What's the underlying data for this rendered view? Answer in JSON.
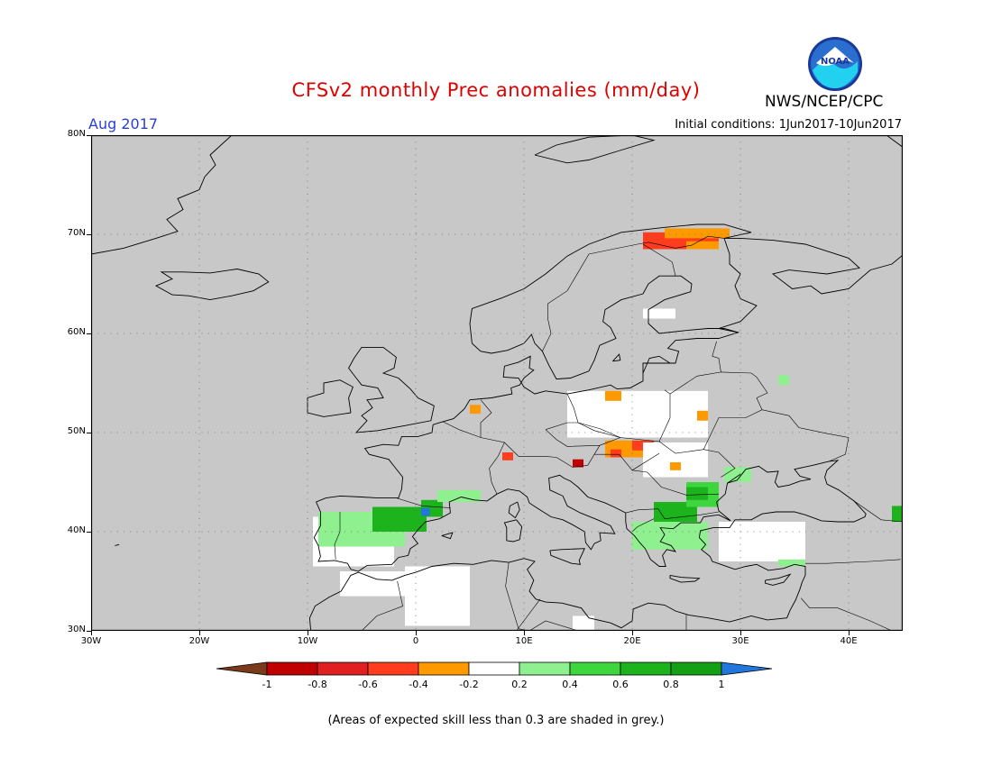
{
  "title": "CFSv2 monthly Prec anomalies (mm/day)",
  "organization": "NWS/NCEP/CPC",
  "logo_text": "NOAA",
  "month_label": "Aug 2017",
  "initial_conditions": "Initial conditions: 1Jun2017-10Jun2017",
  "footnote": "(Areas of expected skill less than 0.3 are shaded in grey.)",
  "colors": {
    "land_grey": "#c8c8c8",
    "coast": "#000000",
    "grid": "#777777"
  },
  "map": {
    "lon_range": [
      -30,
      45
    ],
    "lat_range": [
      30,
      80
    ],
    "lat_ticks": [
      {
        "value": 30,
        "label": "30N"
      },
      {
        "value": 40,
        "label": "40N"
      },
      {
        "value": 50,
        "label": "50N"
      },
      {
        "value": 60,
        "label": "60N"
      },
      {
        "value": 70,
        "label": "70N"
      },
      {
        "value": 80,
        "label": "80N"
      }
    ],
    "lon_ticks": [
      {
        "value": -30,
        "label": "30W"
      },
      {
        "value": -20,
        "label": "20W"
      },
      {
        "value": -10,
        "label": "10W"
      },
      {
        "value": 0,
        "label": "0"
      },
      {
        "value": 10,
        "label": "10E"
      },
      {
        "value": 20,
        "label": "20E"
      },
      {
        "value": 30,
        "label": "30E"
      },
      {
        "value": 40,
        "label": "40E"
      }
    ],
    "anomaly_regions": [
      {
        "name": "northern-finland-dry",
        "color": "#ff3c1e",
        "lon": [
          21,
          28
        ],
        "lat": [
          68.5,
          70.2
        ]
      },
      {
        "name": "finnmark-moderate-dry",
        "color": "#ff9900",
        "lon": [
          23,
          29
        ],
        "lat": [
          69.6,
          70.6
        ]
      },
      {
        "name": "lapland-moderate-dry",
        "color": "#ff9900",
        "lon": [
          25,
          28
        ],
        "lat": [
          68.5,
          69.3
        ]
      },
      {
        "name": "finland-neutral",
        "color": "#ffffff",
        "lon": [
          21,
          24
        ],
        "lat": [
          61.5,
          62.5
        ]
      },
      {
        "name": "poland-neutral",
        "color": "#ffffff",
        "lon": [
          14,
          27
        ],
        "lat": [
          49.5,
          54.2
        ]
      },
      {
        "name": "poland-dry",
        "color": "#ff9900",
        "lon": [
          17.5,
          19
        ],
        "lat": [
          53.2,
          54.2
        ]
      },
      {
        "name": "ukraine-dry",
        "color": "#ff9900",
        "lon": [
          26,
          27
        ],
        "lat": [
          51.2,
          52.2
        ]
      },
      {
        "name": "slovakia-dry",
        "color": "#ff9900",
        "lon": [
          17.5,
          21
        ],
        "lat": [
          47.5,
          49.2
        ]
      },
      {
        "name": "slovakia-stronger-dry",
        "color": "#ff3c1e",
        "lon": [
          20,
          22
        ],
        "lat": [
          48.2,
          49.2
        ]
      },
      {
        "name": "hungary-dry",
        "color": "#ff3c1e",
        "lon": [
          18,
          19
        ],
        "lat": [
          47.5,
          48.3
        ]
      },
      {
        "name": "carpathian-neutral",
        "color": "#ffffff",
        "lon": [
          21,
          27
        ],
        "lat": [
          45.5,
          49
        ]
      },
      {
        "name": "netherlands-dry",
        "color": "#ff9900",
        "lon": [
          5,
          6
        ],
        "lat": [
          51.9,
          52.8
        ]
      },
      {
        "name": "switzerland-dry",
        "color": "#ff3c1e",
        "lon": [
          8,
          9
        ],
        "lat": [
          47.2,
          48
        ]
      },
      {
        "name": "slovenia-very-dry",
        "color": "#c00000",
        "lon": [
          14.5,
          15.5
        ],
        "lat": [
          46.5,
          47.3
        ]
      },
      {
        "name": "romania-dry",
        "color": "#ff9900",
        "lon": [
          23.5,
          24.5
        ],
        "lat": [
          46.2,
          47
        ]
      },
      {
        "name": "spain-neutral",
        "color": "#ffffff",
        "lon": [
          -9.5,
          -2
        ],
        "lat": [
          36.5,
          41.5
        ]
      },
      {
        "name": "spain-light-wet",
        "color": "#8ef08e",
        "lon": [
          -9,
          -1
        ],
        "lat": [
          38.5,
          42
        ]
      },
      {
        "name": "spain-wet",
        "color": "#1db31d",
        "lon": [
          -4,
          1
        ],
        "lat": [
          40,
          42.5
        ]
      },
      {
        "name": "ebro-wet",
        "color": "#1db31d",
        "lon": [
          0.5,
          2.5
        ],
        "lat": [
          41.5,
          43.2
        ]
      },
      {
        "name": "catalonia-very-wet",
        "color": "#2277dd",
        "lon": [
          0.5,
          1.3
        ],
        "lat": [
          41.6,
          42.4
        ]
      },
      {
        "name": "pyrenees-light-wet",
        "color": "#8ef08e",
        "lon": [
          2,
          6
        ],
        "lat": [
          43,
          44.2
        ]
      },
      {
        "name": "north-africa-neutral",
        "color": "#ffffff",
        "lon": [
          -1,
          5
        ],
        "lat": [
          30.5,
          36.5
        ]
      },
      {
        "name": "morocco-neutral",
        "color": "#ffffff",
        "lon": [
          -7,
          -1
        ],
        "lat": [
          33.5,
          36
        ]
      },
      {
        "name": "balkans-wet",
        "color": "#1db31d",
        "lon": [
          22,
          26
        ],
        "lat": [
          40.5,
          43
        ]
      },
      {
        "name": "balkans-light-wet",
        "color": "#8ef08e",
        "lon": [
          20,
          27
        ],
        "lat": [
          38.2,
          41
        ]
      },
      {
        "name": "bulgaria-wet",
        "color": "#3ed63e",
        "lon": [
          25,
          28
        ],
        "lat": [
          42.5,
          45
        ]
      },
      {
        "name": "bulgaria-strong-wet",
        "color": "#1db31d",
        "lon": [
          25,
          27
        ],
        "lat": [
          43.2,
          44.5
        ]
      },
      {
        "name": "black-sea-coast-light-wet",
        "color": "#8ef08e",
        "lon": [
          28.5,
          31
        ],
        "lat": [
          45,
          46.5
        ]
      },
      {
        "name": "anatolia-neutral",
        "color": "#ffffff",
        "lon": [
          28,
          36
        ],
        "lat": [
          37,
          41
        ]
      },
      {
        "name": "turkey-light-wet",
        "color": "#8ef08e",
        "lon": [
          33.5,
          36
        ],
        "lat": [
          36.5,
          37.2
        ]
      },
      {
        "name": "caucasus-wet",
        "color": "#1db31d",
        "lon": [
          44,
          45
        ],
        "lat": [
          41,
          42.6
        ]
      },
      {
        "name": "russia-light-wet",
        "color": "#8ef08e",
        "lon": [
          33.5,
          34.5
        ],
        "lat": [
          54.8,
          55.8
        ]
      },
      {
        "name": "libya-neutral",
        "color": "#ffffff",
        "lon": [
          14.5,
          16.5
        ],
        "lat": [
          30,
          31.5
        ]
      }
    ]
  },
  "colorbar": {
    "labels": [
      "-1",
      "-0.8",
      "-0.6",
      "-0.4",
      "-0.2",
      "0.2",
      "0.4",
      "0.6",
      "0.8",
      "1"
    ],
    "colors": [
      "#7b3a1c",
      "#c00000",
      "#e02020",
      "#ff3c1e",
      "#ff9900",
      "#ffffff",
      "#8ef08e",
      "#3ed63e",
      "#1db31d",
      "#14a014",
      "#2277dd"
    ]
  }
}
